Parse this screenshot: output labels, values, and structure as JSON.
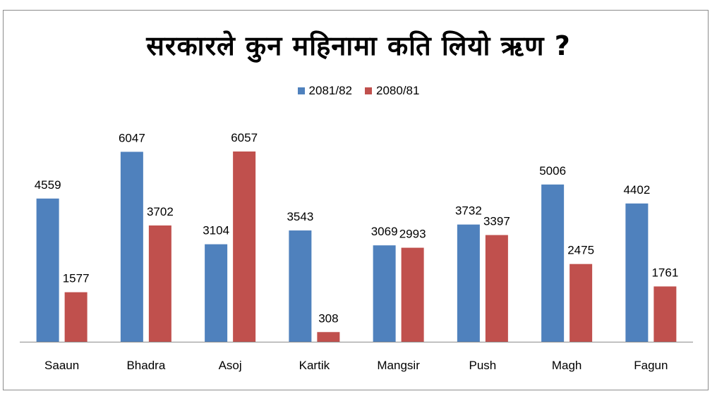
{
  "chart_data": {
    "type": "bar",
    "title": "सरकारले कुन महिनामा कति लियो ऋण ?",
    "categories": [
      "Saaun",
      "Bhadra",
      "Asoj",
      "Kartik",
      "Mangsir",
      "Push",
      "Magh",
      "Fagun"
    ],
    "series": [
      {
        "name": "2081/82",
        "color": "#4f81bd",
        "values": [
          4559,
          6047,
          3104,
          3543,
          3069,
          3732,
          5006,
          4402
        ]
      },
      {
        "name": "2080/81",
        "color": "#c0504d",
        "values": [
          1577,
          3702,
          6057,
          308,
          2993,
          3397,
          2475,
          1761
        ]
      }
    ],
    "ylim": [
      0,
      6057
    ],
    "grid": false,
    "legend_position": "top"
  }
}
